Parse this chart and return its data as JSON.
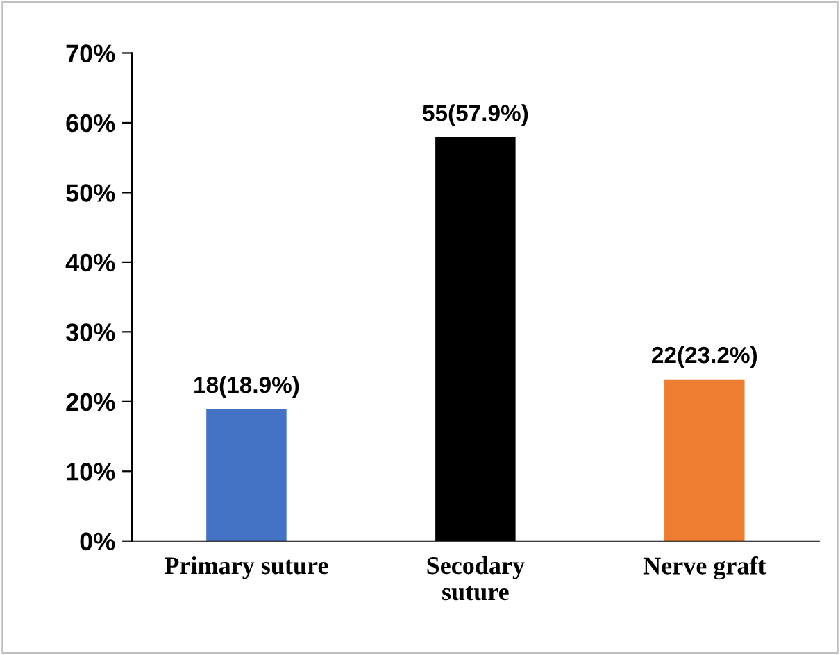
{
  "chart_data": {
    "type": "bar",
    "categories": [
      "Primary suture",
      "Secodary\nsuture",
      "Nerve graft"
    ],
    "values": [
      18.9,
      57.9,
      23.2
    ],
    "colors": [
      "#4472c4",
      "#000000",
      "#ed7d31"
    ],
    "value_labels": [
      "18(18.9%)",
      "55(57.9%)",
      "22(23.2%)"
    ],
    "ylim": [
      0,
      70
    ],
    "yticks": [
      {
        "value": 0,
        "label": "0%"
      },
      {
        "value": 10,
        "label": "10%"
      },
      {
        "value": 20,
        "label": "20%"
      },
      {
        "value": 30,
        "label": "30%"
      },
      {
        "value": 40,
        "label": "40%"
      },
      {
        "value": 50,
        "label": "50%"
      },
      {
        "value": 60,
        "label": "60%"
      },
      {
        "value": 70,
        "label": "70%"
      }
    ],
    "grid": false,
    "legend": false
  }
}
